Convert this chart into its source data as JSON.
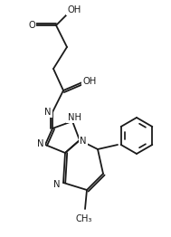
{
  "bg": "#ffffff",
  "lc": "#1a1a1a",
  "lw": 1.3,
  "fs": 7.2,
  "figsize": [
    1.89,
    2.62
  ],
  "dpi": 100,
  "xlim": [
    0,
    189
  ],
  "ylim": [
    262,
    0
  ]
}
